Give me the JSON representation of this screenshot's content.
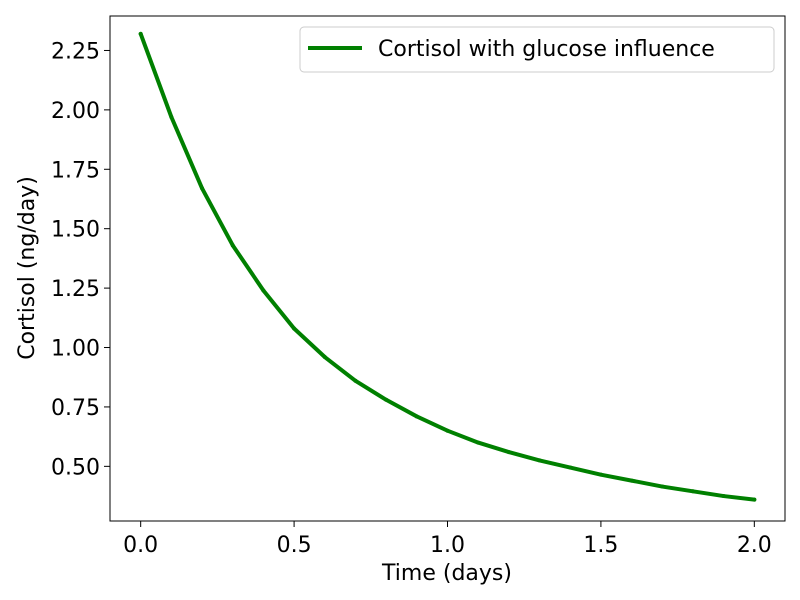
{
  "chart_data": {
    "type": "line",
    "xlabel": "Time (days)",
    "ylabel": "Cortisol (ng/day)",
    "xlim": [
      -0.1,
      2.1
    ],
    "ylim": [
      0.27,
      2.395
    ],
    "xticks": [
      0.0,
      0.5,
      1.0,
      1.5,
      2.0
    ],
    "xtick_labels": [
      "0.0",
      "0.5",
      "1.0",
      "1.5",
      "2.0"
    ],
    "yticks": [
      0.5,
      0.75,
      1.0,
      1.25,
      1.5,
      1.75,
      2.0,
      2.25
    ],
    "ytick_labels": [
      "0.50",
      "0.75",
      "1.00",
      "1.25",
      "1.50",
      "1.75",
      "2.00",
      "2.25"
    ],
    "grid": false,
    "legend_position": "top-right",
    "series": [
      {
        "name": "Cortisol with glucose influence",
        "color": "#008000",
        "x": [
          0.0,
          0.1,
          0.2,
          0.3,
          0.4,
          0.5,
          0.6,
          0.7,
          0.8,
          0.9,
          1.0,
          1.1,
          1.2,
          1.3,
          1.4,
          1.5,
          1.6,
          1.7,
          1.8,
          1.9,
          2.0
        ],
        "y": [
          2.32,
          1.97,
          1.67,
          1.43,
          1.24,
          1.08,
          0.96,
          0.86,
          0.78,
          0.71,
          0.65,
          0.6,
          0.56,
          0.525,
          0.495,
          0.465,
          0.44,
          0.415,
          0.395,
          0.375,
          0.36
        ]
      }
    ]
  }
}
